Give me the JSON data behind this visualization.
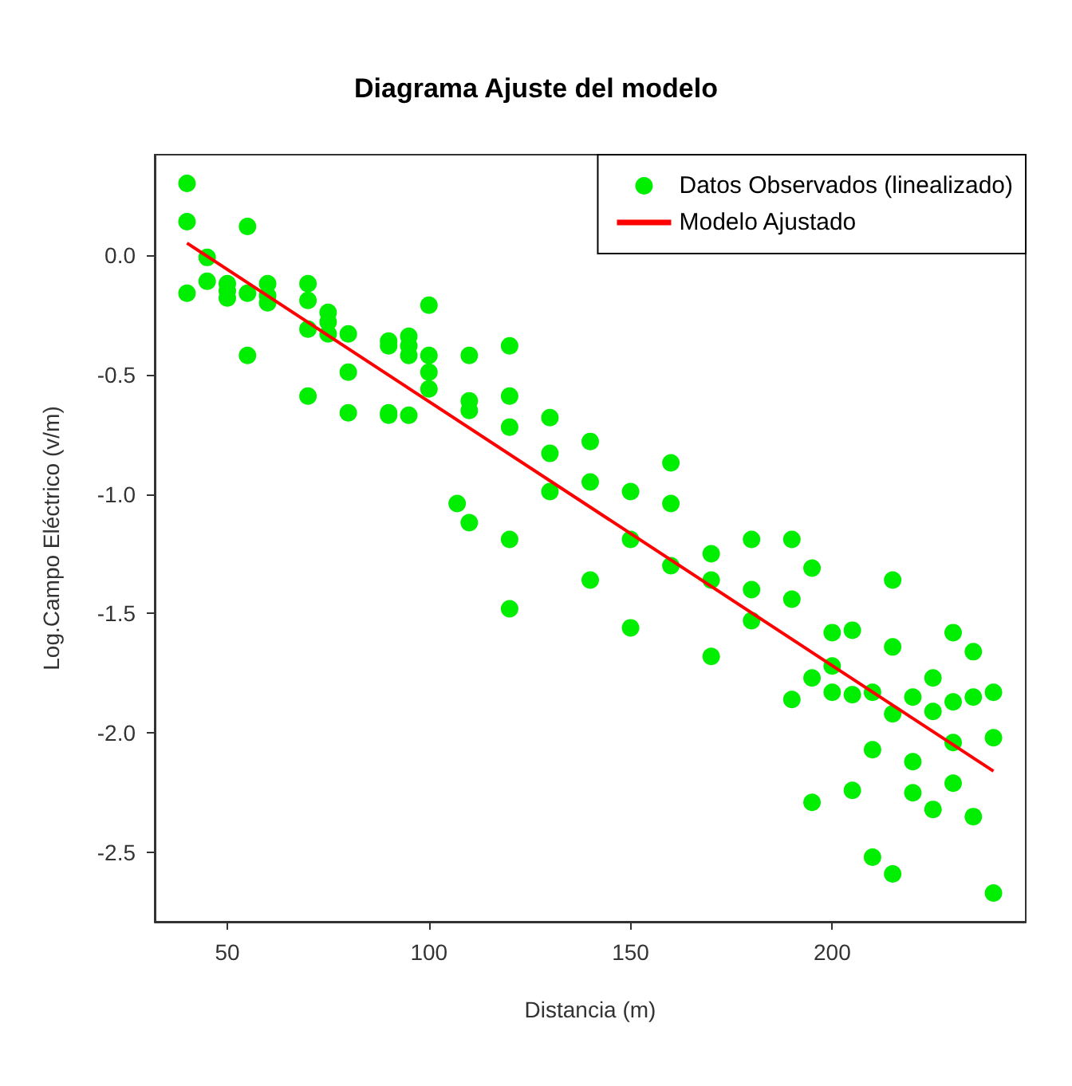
{
  "chart_data": {
    "type": "scatter",
    "title": "Diagrama Ajuste del modelo",
    "xlabel": "Distancia (m)",
    "ylabel": "Log.Campo Eléctrico (v/m)",
    "xlim": [
      32,
      248
    ],
    "xticks": [
      50,
      100,
      150,
      200
    ],
    "ylim": [
      -2.79,
      0.42
    ],
    "yticks": [
      -2.5,
      {
        "value": -2,
        "label": "-2.0"
      },
      -1.5,
      {
        "value": -1,
        "label": "-1.0"
      },
      -0.5,
      {
        "value": 0,
        "label": "0.0"
      }
    ],
    "grid": false,
    "legend": "top right",
    "series": [
      {
        "name": "Datos Observados (linealizado)",
        "marker": "circle",
        "color": "#00ee00",
        "x": [
          40,
          40,
          40,
          45,
          45,
          50,
          50,
          50,
          55,
          55,
          55,
          60,
          60,
          60,
          70,
          70,
          70,
          70,
          75,
          75,
          75,
          80,
          80,
          80,
          90,
          90,
          90,
          90,
          95,
          95,
          95,
          95,
          100,
          100,
          100,
          100,
          107,
          110,
          110,
          110,
          110,
          120,
          120,
          120,
          120,
          120,
          130,
          130,
          130,
          140,
          140,
          140,
          150,
          150,
          150,
          160,
          160,
          160,
          170,
          170,
          170,
          180,
          180,
          180,
          190,
          190,
          190,
          195,
          195,
          195,
          200,
          200,
          200,
          205,
          205,
          205,
          210,
          210,
          210,
          215,
          215,
          215,
          215,
          220,
          220,
          220,
          225,
          225,
          225,
          230,
          230,
          230,
          230,
          235,
          235,
          235,
          240,
          240,
          240
        ],
        "values": [
          0.3,
          0.14,
          -0.16,
          -0.01,
          -0.11,
          -0.12,
          -0.15,
          -0.18,
          0.12,
          -0.16,
          -0.42,
          -0.12,
          -0.17,
          -0.2,
          -0.12,
          -0.19,
          -0.31,
          -0.59,
          -0.24,
          -0.28,
          -0.33,
          -0.33,
          -0.49,
          -0.66,
          -0.36,
          -0.38,
          -0.66,
          -0.67,
          -0.34,
          -0.38,
          -0.42,
          -0.67,
          -0.21,
          -0.42,
          -0.49,
          -0.56,
          -1.04,
          -0.42,
          -0.61,
          -0.65,
          -1.12,
          -0.38,
          -0.59,
          -0.72,
          -1.19,
          -1.48,
          -0.68,
          -0.83,
          -0.99,
          -0.78,
          -0.95,
          -1.36,
          -0.99,
          -1.19,
          -1.56,
          -0.87,
          -1.04,
          -1.3,
          -1.25,
          -1.36,
          -1.68,
          -1.19,
          -1.4,
          -1.53,
          -1.19,
          -1.44,
          -1.86,
          -1.31,
          -1.77,
          -2.29,
          -1.58,
          -1.72,
          -1.83,
          -1.57,
          -1.84,
          -2.24,
          -1.83,
          -2.07,
          -2.52,
          -1.36,
          -1.64,
          -1.92,
          -2.59,
          -1.85,
          -2.12,
          -2.25,
          -1.77,
          -1.91,
          -2.32,
          -1.58,
          -1.87,
          -2.04,
          -2.21,
          -1.66,
          -1.85,
          -2.35,
          -1.83,
          -2.02,
          -2.67
        ]
      },
      {
        "name": "Modelo Ajustado",
        "type": "line",
        "marker": "none",
        "line_style": "solid",
        "color": "#ff0000",
        "x": [
          40,
          240
        ],
        "values": [
          0.05,
          -2.16
        ]
      }
    ]
  }
}
